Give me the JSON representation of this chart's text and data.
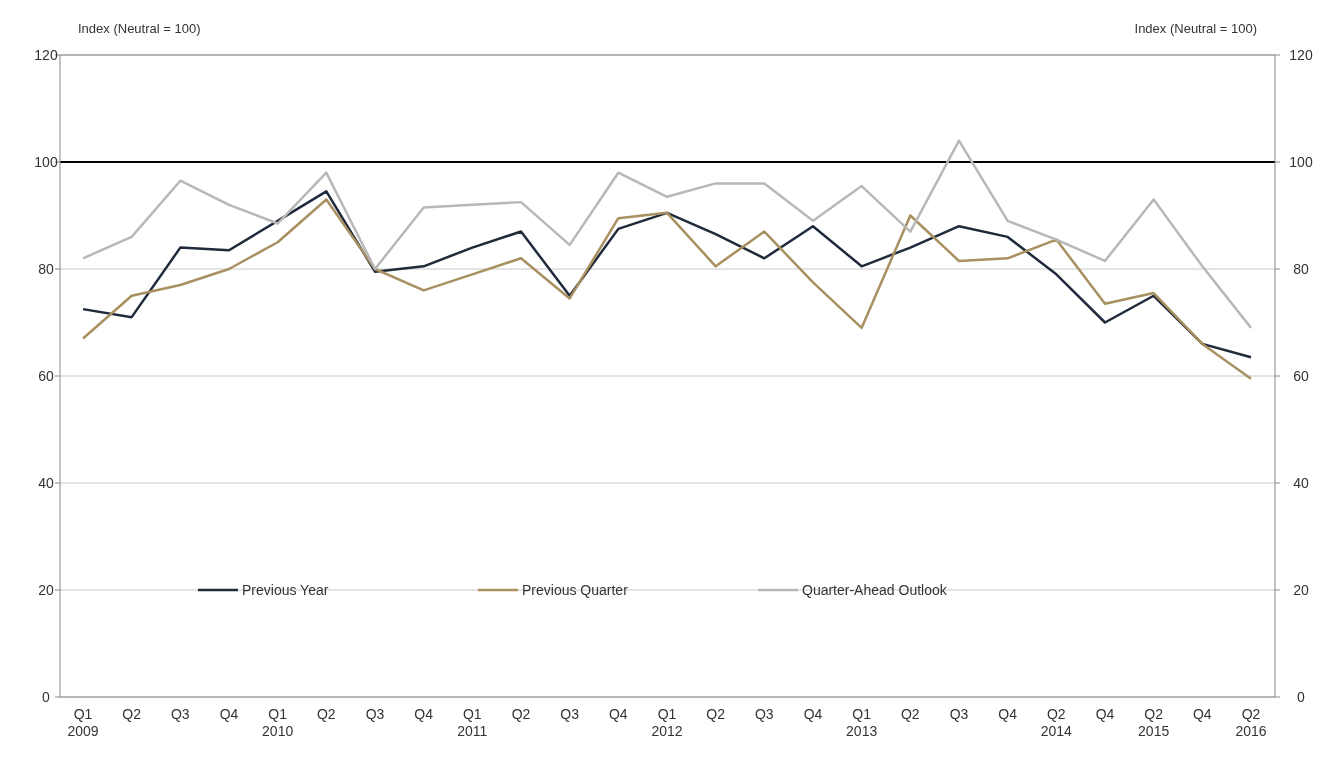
{
  "chart_data": {
    "type": "line",
    "ylabel": "Index (Neutral = 100)",
    "y2label": "Index (Neutral = 100)",
    "categories": [
      "Q1 2009",
      "Q2",
      "Q3",
      "Q4",
      "Q1 2010",
      "Q2",
      "Q3",
      "Q4",
      "Q1 2011",
      "Q2",
      "Q3",
      "Q4",
      "Q1 2012",
      "Q2",
      "Q3",
      "Q4",
      "Q1 2013",
      "Q2",
      "Q3",
      "Q4",
      "Q2 2014",
      "Q4",
      "Q2 2015",
      "Q4",
      "Q2 2016"
    ],
    "series": [
      {
        "name": "Previous Year",
        "color": "#1f2a3a",
        "values": [
          72.5,
          71,
          84,
          83.5,
          89,
          94.5,
          79.5,
          80.5,
          84,
          87,
          75,
          87.5,
          90.5,
          86.5,
          82,
          88,
          80.5,
          84,
          88,
          86,
          79,
          70,
          75,
          66,
          63.5
        ]
      },
      {
        "name": "Previous Quarter",
        "color": "#a89060",
        "values": [
          67,
          75,
          77,
          80,
          85,
          93,
          80,
          76,
          79,
          82,
          74.5,
          89.5,
          90.5,
          80.5,
          87,
          77.5,
          69,
          90,
          81.5,
          82,
          85.5,
          73.5,
          75.5,
          66,
          59.5
        ]
      },
      {
        "name": "Quarter-Ahead Outlook",
        "color": "#b8b8b8",
        "values": [
          82,
          86,
          96.5,
          92,
          88.5,
          98,
          80,
          91.5,
          92,
          92.5,
          84.5,
          98,
          93.5,
          96,
          96,
          89,
          95.5,
          87,
          104,
          89,
          85.5,
          81.5,
          93,
          80.5,
          69
        ]
      }
    ],
    "ylim": [
      0,
      120
    ],
    "yticks": [
      0,
      20,
      40,
      60,
      80,
      100,
      120
    ],
    "y2lim": [
      0,
      120
    ],
    "y2ticks": [
      0,
      20,
      40,
      60,
      80,
      100,
      120
    ],
    "ref_lines": [
      {
        "axis": "y",
        "value": 100,
        "color": "#000000"
      }
    ],
    "grid": "y",
    "legend": "bottom",
    "line_style": "solid",
    "marker": "none"
  }
}
